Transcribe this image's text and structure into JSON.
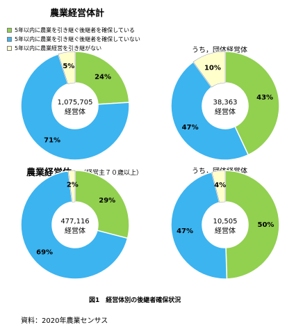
{
  "title_top": "農業経営体計",
  "title_bottom": "農業経営体",
  "title_bottom_note": "（経営主７０歳以上）",
  "subtitle_top_right": "うち，団体経営体",
  "subtitle_bottom_right": "うち，団体経営体",
  "caption": "図1　経営体別の後継者確保状況",
  "source": "資料：2020年農業センサス",
  "legend": [
    {
      "label": "5年以内に農業を引き継ぐ後継者を確保している",
      "color": "#92d050"
    },
    {
      "label": "5年以内に農業を引き継ぐ後継者を確保していない",
      "color": "#3cb4f0"
    },
    {
      "label": "5年以内に農業経営を引き継がない",
      "color": "#ffffcc"
    }
  ],
  "chart_data": [
    {
      "type": "pie",
      "title": "農業経営体計",
      "center_value": "1,075,705",
      "center_unit": "経営体",
      "categories": [
        "5年以内に農業を引き継ぐ後継者を確保している",
        "5年以内に農業を引き継ぐ後継者を確保していない",
        "5年以内に農業経営を引き継がない"
      ],
      "values": [
        24,
        71,
        5
      ],
      "labels": [
        "24%",
        "71%",
        "5%"
      ]
    },
    {
      "type": "pie",
      "title": "うち，団体経営体",
      "center_value": "38,363",
      "center_unit": "経営体",
      "categories": [
        "5年以内に農業を引き継ぐ後継者を確保している",
        "5年以内に農業を引き継ぐ後継者を確保していない",
        "5年以内に農業経営を引き継がない"
      ],
      "values": [
        43,
        47,
        10
      ],
      "labels": [
        "43%",
        "47%",
        "10%"
      ]
    },
    {
      "type": "pie",
      "title": "農業経営体（経営主７０歳以上）",
      "center_value": "477,116",
      "center_unit": "経営体",
      "categories": [
        "5年以内に農業を引き継ぐ後継者を確保している",
        "5年以内に農業を引き継ぐ後継者を確保していない",
        "5年以内に農業経営を引き継がない"
      ],
      "values": [
        29,
        69,
        2
      ],
      "labels": [
        "29%",
        "69%",
        "2%"
      ]
    },
    {
      "type": "pie",
      "title": "うち，団体経営体",
      "center_value": "10,505",
      "center_unit": "経営体",
      "categories": [
        "5年以内に農業を引き継ぐ後継者を確保している",
        "5年以内に農業を引き継ぐ後継者を確保していない",
        "5年以内に農業経営を引き継がない"
      ],
      "values": [
        50,
        47,
        4
      ],
      "labels": [
        "50%",
        "47%",
        "4%"
      ]
    }
  ]
}
